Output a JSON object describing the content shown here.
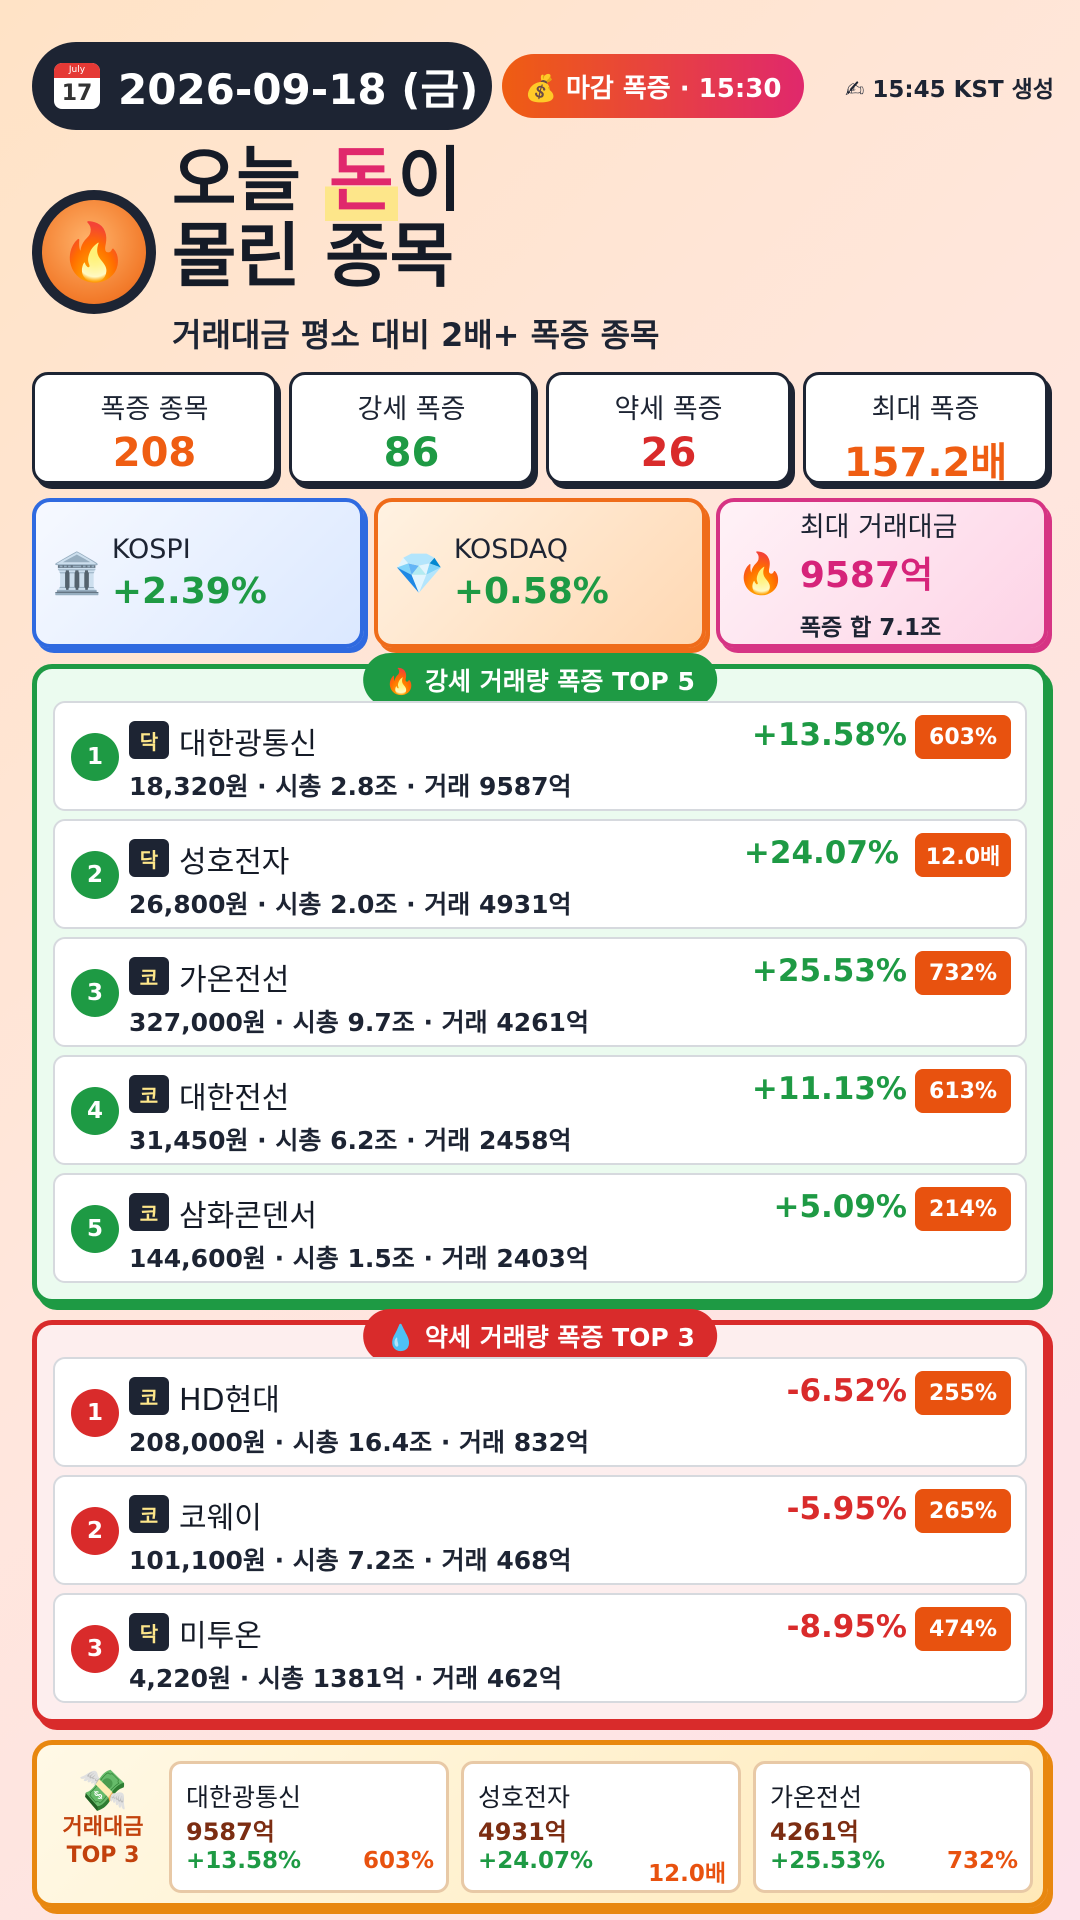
{
  "header": {
    "date": "2026-09-18 (금)",
    "calendar_month": "July",
    "calendar_day": "17",
    "close_badge": "💰 마감 폭증 · 15:30",
    "generated": "✍ 15:45 KST 생성",
    "title_part1": "오늘 ",
    "title_highlight": "돈",
    "title_part2": "이",
    "title_line2": "몰린 종목",
    "subtitle": "거래대금 평소 대비 2배+ 폭증 종목",
    "fire_icon": "🔥"
  },
  "stats": [
    {
      "label": "폭증 종목",
      "value": "208",
      "color": "#ef5d12"
    },
    {
      "label": "강세 폭증",
      "value": "86",
      "color": "#1e9a44"
    },
    {
      "label": "약세 폭증",
      "value": "26",
      "color": "#d92b2b"
    },
    {
      "label": "최대 폭증",
      "value": "157.2배",
      "color": "#ef5d12"
    }
  ],
  "indices": {
    "kospi": {
      "icon": "🏛️",
      "name": "KOSPI",
      "change": "+2.39%"
    },
    "kosdaq": {
      "icon": "💎",
      "name": "KOSDAQ",
      "change": "+0.58%"
    },
    "max_volume": {
      "icon": "🔥",
      "label": "최대 거래대금",
      "value": "9587억",
      "sum": "폭증 합 7.1조"
    }
  },
  "gainers": {
    "title": "🔥 강세 거래량 폭증 TOP 5",
    "items": [
      {
        "rank": "1",
        "market": "닥",
        "name": "대한광통신",
        "info": "18,320원 · 시총 2.8조 · 거래 9587억",
        "change": "+13.58%",
        "ratio": "603%"
      },
      {
        "rank": "2",
        "market": "닥",
        "name": "성호전자",
        "info": "26,800원 · 시총 2.0조 · 거래 4931억",
        "change": "+24.07%",
        "ratio": "12.0배"
      },
      {
        "rank": "3",
        "market": "코",
        "name": "가온전선",
        "info": "327,000원 · 시총 9.7조 · 거래 4261억",
        "change": "+25.53%",
        "ratio": "732%"
      },
      {
        "rank": "4",
        "market": "코",
        "name": "대한전선",
        "info": "31,450원 · 시총 6.2조 · 거래 2458억",
        "change": "+11.13%",
        "ratio": "613%"
      },
      {
        "rank": "5",
        "market": "코",
        "name": "삼화콘덴서",
        "info": "144,600원 · 시총 1.5조 · 거래 2403억",
        "change": "+5.09%",
        "ratio": "214%"
      }
    ]
  },
  "losers": {
    "title": "💧 약세 거래량 폭증 TOP 3",
    "items": [
      {
        "rank": "1",
        "market": "코",
        "name": "HD현대",
        "info": "208,000원 · 시총 16.4조 · 거래 832억",
        "change": "-6.52%",
        "ratio": "255%"
      },
      {
        "rank": "2",
        "market": "코",
        "name": "코웨이",
        "info": "101,100원 · 시총 7.2조 · 거래 468억",
        "change": "-5.95%",
        "ratio": "265%"
      },
      {
        "rank": "3",
        "market": "닥",
        "name": "미투온",
        "info": "4,220원 · 시총 1381억 · 거래 462억",
        "change": "-8.95%",
        "ratio": "474%"
      }
    ]
  },
  "volume_top3": {
    "icon": "💸",
    "title_line1": "거래대금",
    "title_line2": "TOP 3",
    "items": [
      {
        "name": "대한광통신",
        "amount": "9587억",
        "change": "+13.58%",
        "ratio": "603%"
      },
      {
        "name": "성호전자",
        "amount": "4931억",
        "change": "+24.07%",
        "ratio": "12.0배"
      },
      {
        "name": "가온전선",
        "amount": "4261억",
        "change": "+25.53%",
        "ratio": "732%"
      }
    ]
  }
}
